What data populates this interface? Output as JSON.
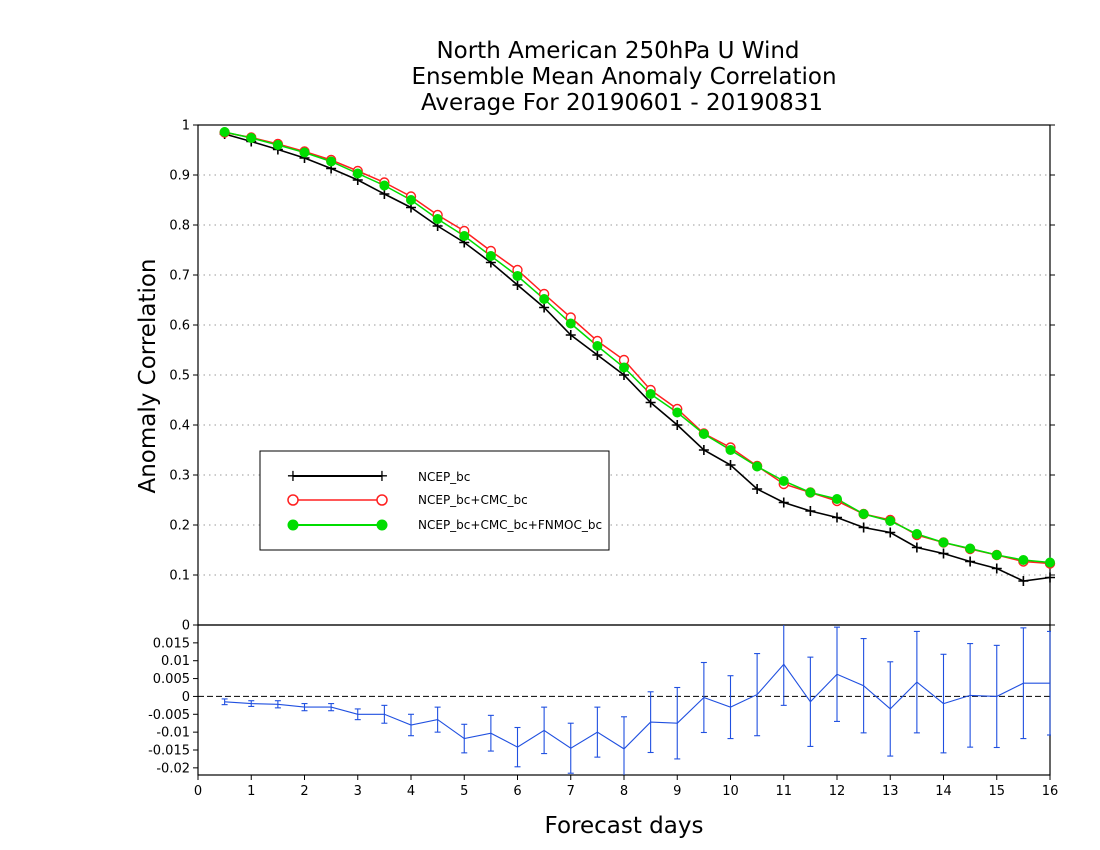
{
  "chart_data": [
    {
      "type": "line",
      "title": [
        "North American 250hPa U Wind",
        "Ensemble Mean Anomaly Correlation",
        "Average For 20190601 - 20190831"
      ],
      "xlabel": "Forecast days",
      "ylabel": "Anomaly Correlation",
      "xlim": [
        0,
        16
      ],
      "ylim": [
        0,
        1
      ],
      "x_ticks": [
        "0",
        "1",
        "2",
        "3",
        "4",
        "5",
        "6",
        "7",
        "8",
        "9",
        "10",
        "11",
        "12",
        "13",
        "14",
        "15",
        "16"
      ],
      "y_ticks": [
        "0",
        "0.1",
        "0.2",
        "0.3",
        "0.4",
        "0.5",
        "0.6",
        "0.7",
        "0.8",
        "0.9",
        "1"
      ],
      "grid": "horizontal dotted",
      "legend_position": "center-left",
      "x": [
        0.5,
        1,
        1.5,
        2,
        2.5,
        3,
        3.5,
        4,
        4.5,
        5,
        5.5,
        6,
        6.5,
        7,
        7.5,
        8,
        8.5,
        9,
        9.5,
        10,
        10.5,
        11,
        11.5,
        12,
        12.5,
        13,
        13.5,
        14,
        14.5,
        15,
        15.5,
        16
      ],
      "series": [
        {
          "name": "NCEP_bc",
          "color": "#000000",
          "marker": "plus",
          "values": [
            0.982,
            0.967,
            0.951,
            0.934,
            0.913,
            0.89,
            0.862,
            0.835,
            0.798,
            0.765,
            0.725,
            0.68,
            0.635,
            0.58,
            0.54,
            0.5,
            0.445,
            0.4,
            0.35,
            0.32,
            0.272,
            0.245,
            0.228,
            0.215,
            0.195,
            0.185,
            0.155,
            0.143,
            0.127,
            0.113,
            0.088,
            0.095
          ]
        },
        {
          "name": "NCEP_bc+CMC_bc",
          "color": "#ff2020",
          "marker": "open-circle",
          "values": [
            0.985,
            0.975,
            0.962,
            0.947,
            0.93,
            0.908,
            0.885,
            0.857,
            0.82,
            0.788,
            0.748,
            0.71,
            0.662,
            0.615,
            0.568,
            0.53,
            0.47,
            0.432,
            0.383,
            0.355,
            0.318,
            0.282,
            0.265,
            0.248,
            0.222,
            0.21,
            0.18,
            0.165,
            0.152,
            0.14,
            0.127,
            0.123
          ]
        },
        {
          "name": "NCEP_bc+CMC_bc+FNMOC_bc",
          "color": "#00dd00",
          "marker": "filled-circle",
          "values": [
            0.986,
            0.974,
            0.96,
            0.945,
            0.927,
            0.903,
            0.879,
            0.85,
            0.812,
            0.778,
            0.738,
            0.698,
            0.652,
            0.603,
            0.558,
            0.515,
            0.462,
            0.425,
            0.382,
            0.35,
            0.317,
            0.288,
            0.265,
            0.252,
            0.222,
            0.208,
            0.182,
            0.165,
            0.153,
            0.14,
            0.13,
            0.125
          ]
        }
      ]
    },
    {
      "type": "line",
      "title": "",
      "xlabel": "Forecast days",
      "ylabel": "",
      "xlim": [
        0,
        16
      ],
      "ylim": [
        -0.022,
        0.02
      ],
      "x_ticks": [
        "0",
        "1",
        "2",
        "3",
        "4",
        "5",
        "6",
        "7",
        "8",
        "9",
        "10",
        "11",
        "12",
        "13",
        "14",
        "15",
        "16"
      ],
      "y_ticks": [
        "-0.02",
        "-0.015",
        "-0.01",
        "-0.005",
        "0",
        "0.005",
        "0.01",
        "0.015"
      ],
      "zero_line": "dashed",
      "color": "#2050e0",
      "x": [
        0.5,
        1,
        1.5,
        2,
        2.5,
        3,
        3.5,
        4,
        4.5,
        5,
        5.5,
        6,
        6.5,
        7,
        7.5,
        8,
        8.5,
        9,
        9.5,
        10,
        10.5,
        11,
        11.5,
        12,
        12.5,
        13,
        13.5,
        14,
        14.5,
        15,
        15.5,
        16
      ],
      "values": [
        -0.0015,
        -0.002,
        -0.0022,
        -0.003,
        -0.003,
        -0.005,
        -0.005,
        -0.008,
        -0.0065,
        -0.0118,
        -0.0103,
        -0.0142,
        -0.0095,
        -0.0145,
        -0.01,
        -0.0147,
        -0.0072,
        -0.0075,
        -0.0003,
        -0.003,
        0.0005,
        0.009,
        -0.0015,
        0.0062,
        0.003,
        -0.0035,
        0.004,
        -0.002,
        0.0003,
        0,
        0.0037,
        0.0037
      ],
      "error_bars": [
        0.0008,
        0.0008,
        0.001,
        0.001,
        0.001,
        0.0015,
        0.0025,
        0.003,
        0.0035,
        0.004,
        0.005,
        0.0055,
        0.0065,
        0.007,
        0.007,
        0.009,
        0.0085,
        0.01,
        0.0098,
        0.0088,
        0.0115,
        0.0115,
        0.0125,
        0.0132,
        0.0132,
        0.0132,
        0.0142,
        0.0138,
        0.0145,
        0.0143,
        0.0155,
        0.0145
      ]
    }
  ],
  "legend_entries": [
    "NCEP_bc",
    "NCEP_bc+CMC_bc",
    "NCEP_bc+CMC_bc+FNMOC_bc"
  ]
}
